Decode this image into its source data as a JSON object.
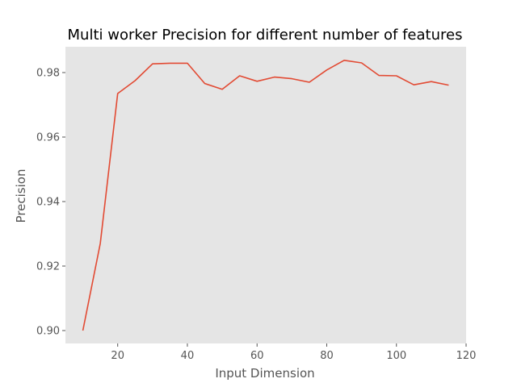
{
  "chart_data": {
    "type": "line",
    "title": "Multi worker Precision for different number of features",
    "xlabel": "Input Dimension",
    "ylabel": "Precision",
    "xlim": [
      5,
      120
    ],
    "ylim": [
      0.896,
      0.988
    ],
    "xticks": [
      20,
      40,
      60,
      80,
      100,
      120
    ],
    "yticks": [
      0.9,
      0.92,
      0.94,
      0.96,
      0.98
    ],
    "grid": false,
    "legend": "none",
    "colors": {
      "background": "#e5e5e5",
      "line": "#e24a33",
      "tick_text": "#555555"
    },
    "series": [
      {
        "x": [
          10,
          15,
          20,
          25,
          30,
          35,
          40,
          45,
          50,
          55,
          60,
          65,
          70,
          75,
          80,
          85,
          90,
          95,
          100,
          105,
          110,
          115
        ],
        "values": [
          0.9,
          0.927,
          0.9735,
          0.9775,
          0.9827,
          0.9829,
          0.9829,
          0.9766,
          0.9748,
          0.979,
          0.9773,
          0.9786,
          0.9781,
          0.977,
          0.9808,
          0.9838,
          0.983,
          0.9791,
          0.979,
          0.9762,
          0.9772,
          0.9761
        ]
      }
    ]
  }
}
